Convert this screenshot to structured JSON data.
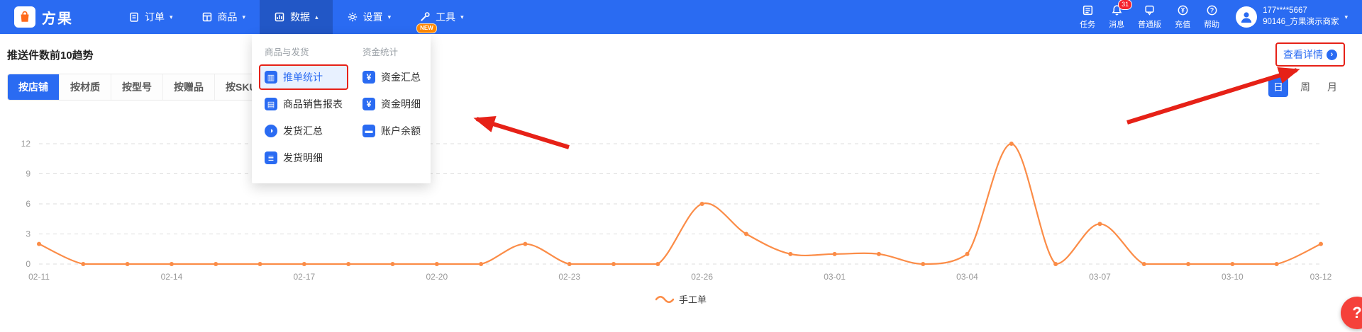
{
  "topbar": {
    "brand": "方果",
    "nav": [
      {
        "label": "订单",
        "caret": "▾"
      },
      {
        "label": "商品",
        "caret": "▾"
      },
      {
        "label": "数据",
        "caret": "▴"
      },
      {
        "label": "设置",
        "caret": "▾"
      },
      {
        "label": "工具",
        "caret": "▾",
        "badge": "NEW"
      }
    ],
    "quick": [
      {
        "label": "任务"
      },
      {
        "label": "消息",
        "badge": "31"
      },
      {
        "label": "普通版"
      },
      {
        "label": "充值"
      },
      {
        "label": "帮助"
      }
    ],
    "user": {
      "phone": "177****5667",
      "account": "90146_方果演示商家",
      "caret": "▾"
    }
  },
  "dropdown": {
    "groups": [
      {
        "title": "商品与发货",
        "items": [
          "推单统计",
          "商品销售报表",
          "发货汇总",
          "发货明细"
        ]
      },
      {
        "title": "资金统计",
        "items": [
          "资金汇总",
          "资金明细",
          "账户余额"
        ]
      }
    ],
    "highlighted_item": "推单统计"
  },
  "page": {
    "title": "推送件数前10趋势",
    "view_details": "查看详情",
    "tabs": [
      "按店铺",
      "按材质",
      "按型号",
      "按赠品",
      "按SKU"
    ],
    "active_tab": "按店铺",
    "periods": [
      "日",
      "周",
      "月"
    ],
    "active_period": "日",
    "legend": "手工单",
    "help": "?"
  },
  "icons": {
    "push_stats": "▥",
    "sales_report": "▤",
    "shipping_summary": "◑",
    "shipping_detail": "≣",
    "funds_summary": "¥",
    "funds_detail": "¥",
    "account_balance": "▬",
    "view_details_arrow": "›"
  },
  "colors": {
    "topbar": "#2a6bf2",
    "accent": "#2a6bf2",
    "series": "#fb8c47",
    "annotation": "#e62117",
    "badge": "#f5222d"
  },
  "chart_data": {
    "type": "line",
    "title": "推送件数前10趋势",
    "x": [
      "02-11",
      "02-12",
      "02-13",
      "02-14",
      "02-15",
      "02-16",
      "02-17",
      "02-18",
      "02-19",
      "02-20",
      "02-21",
      "02-22",
      "02-23",
      "02-24",
      "02-25",
      "02-26",
      "02-27",
      "02-28",
      "03-01",
      "03-02",
      "03-03",
      "03-04",
      "03-05",
      "03-06",
      "03-07",
      "03-08",
      "03-09",
      "03-10",
      "03-11",
      "03-12"
    ],
    "series": [
      {
        "name": "手工单",
        "values": [
          2,
          0,
          0,
          0,
          0,
          0,
          0,
          0,
          0,
          0,
          0,
          2,
          0,
          0,
          0,
          6,
          3,
          1,
          1,
          1,
          0,
          1,
          12,
          0,
          4,
          0,
          0,
          0,
          0,
          2
        ]
      }
    ],
    "x_tick_labels": [
      "02-11",
      "02-14",
      "02-17",
      "02-20",
      "02-23",
      "02-26",
      "03-01",
      "03-04",
      "03-07",
      "03-10",
      "03-12"
    ],
    "yticks": [
      0,
      3,
      6,
      9,
      12
    ],
    "ylim": [
      0,
      12
    ],
    "color": "#fb8c47",
    "smooth": true,
    "grid": "horizontal-dashed",
    "legend_position": "bottom-center"
  }
}
